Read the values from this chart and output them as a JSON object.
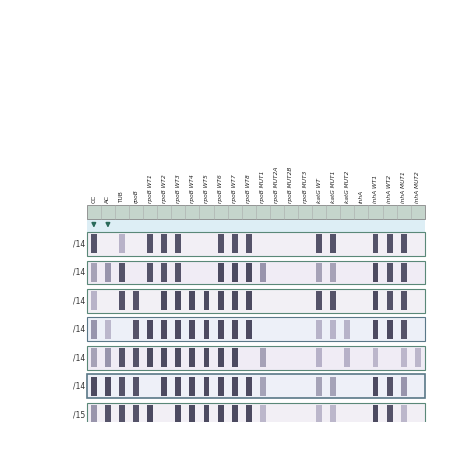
{
  "column_labels": [
    "CC",
    "AC",
    "TUB",
    "rpoB",
    "rpoB WT1",
    "rpoB WT2",
    "rpoB WT3",
    "rpoB WT4",
    "rpoB WT5",
    "rpoB WT6",
    "rpoB WT7",
    "rpoB WT8",
    "rpoB MUT1",
    "rpoB MUT2A",
    "rpoB MUT2B",
    "rpoB MUT3",
    "katG WT",
    "katG MUT1",
    "katG MUT2",
    "inhA",
    "inhA WT1",
    "inhA WT2",
    "inhA MUT1",
    "inhA MUT2"
  ],
  "row_labels": [
    "/14",
    "/14",
    "/14",
    "/14",
    "/14",
    "/14",
    "/15"
  ],
  "header_bg": "#c5d5cc",
  "header_border": "#999999",
  "band_color": "#3a3850",
  "band_color2": "#6a6585",
  "band_color_light": "#a099b5",
  "n_cols": 24,
  "strips": [
    {
      "bands": [
        0,
        2,
        4,
        5,
        6,
        9,
        10,
        11,
        16,
        17,
        20,
        21,
        22
      ],
      "intensities": [
        0.85,
        0.5,
        0.85,
        0.85,
        0.85,
        0.85,
        0.85,
        0.85,
        0.85,
        0.85,
        0.85,
        0.85,
        0.85
      ],
      "bg": "#f2eff5",
      "border": "#5a8878",
      "border_lw": 0.8
    },
    {
      "bands": [
        0,
        1,
        2,
        4,
        5,
        6,
        9,
        10,
        11,
        12,
        16,
        17,
        20,
        21,
        22
      ],
      "intensities": [
        0.55,
        0.65,
        0.85,
        0.85,
        0.85,
        0.85,
        0.9,
        0.9,
        0.9,
        0.65,
        0.55,
        0.55,
        0.9,
        0.85,
        0.85
      ],
      "bg": "#f0ecf5",
      "border": "#5a8878",
      "border_lw": 0.8
    },
    {
      "bands": [
        0,
        2,
        3,
        5,
        6,
        7,
        8,
        9,
        10,
        11,
        16,
        17,
        20,
        21,
        22
      ],
      "intensities": [
        0.5,
        0.85,
        0.85,
        0.9,
        0.9,
        0.9,
        0.9,
        0.9,
        0.9,
        0.9,
        0.85,
        0.85,
        0.9,
        0.85,
        0.85
      ],
      "bg": "#f2f0f5",
      "border": "#5a8878",
      "border_lw": 0.8
    },
    {
      "bands": [
        0,
        1,
        3,
        4,
        5,
        6,
        7,
        8,
        9,
        10,
        11,
        16,
        17,
        18,
        20,
        21,
        22
      ],
      "intensities": [
        0.65,
        0.45,
        0.85,
        0.9,
        0.9,
        0.9,
        0.9,
        0.9,
        0.9,
        0.9,
        0.9,
        0.5,
        0.5,
        0.5,
        0.9,
        0.9,
        0.85
      ],
      "bg": "#edf0f8",
      "border": "#5a7888",
      "border_lw": 0.8
    },
    {
      "bands": [
        0,
        1,
        2,
        3,
        4,
        5,
        6,
        7,
        8,
        9,
        10,
        12,
        16,
        18,
        20,
        22,
        23
      ],
      "intensities": [
        0.55,
        0.65,
        0.85,
        0.85,
        0.9,
        0.9,
        0.9,
        0.9,
        0.9,
        0.9,
        0.9,
        0.55,
        0.5,
        0.5,
        0.45,
        0.45,
        0.45
      ],
      "bg": "#f0ecf5",
      "border": "#5a8878",
      "border_lw": 0.8
    },
    {
      "bands": [
        0,
        1,
        2,
        3,
        5,
        6,
        7,
        8,
        9,
        10,
        11,
        12,
        16,
        17,
        20,
        21,
        22
      ],
      "intensities": [
        0.9,
        0.9,
        0.85,
        0.85,
        0.9,
        0.9,
        0.9,
        0.9,
        0.9,
        0.9,
        0.9,
        0.55,
        0.55,
        0.55,
        0.9,
        0.85,
        0.65
      ],
      "bg": "#eef0f8",
      "border": "#5a7888",
      "border_lw": 1.2
    },
    {
      "bands": [
        0,
        1,
        2,
        3,
        4,
        6,
        7,
        8,
        9,
        10,
        11,
        12,
        16,
        17,
        20,
        21,
        22
      ],
      "intensities": [
        0.65,
        0.85,
        0.85,
        0.85,
        0.9,
        0.9,
        0.9,
        0.9,
        0.9,
        0.9,
        0.9,
        0.45,
        0.45,
        0.45,
        0.9,
        0.85,
        0.45
      ],
      "bg": "#f2eff5",
      "border": "#5a8878",
      "border_lw": 0.8
    }
  ]
}
